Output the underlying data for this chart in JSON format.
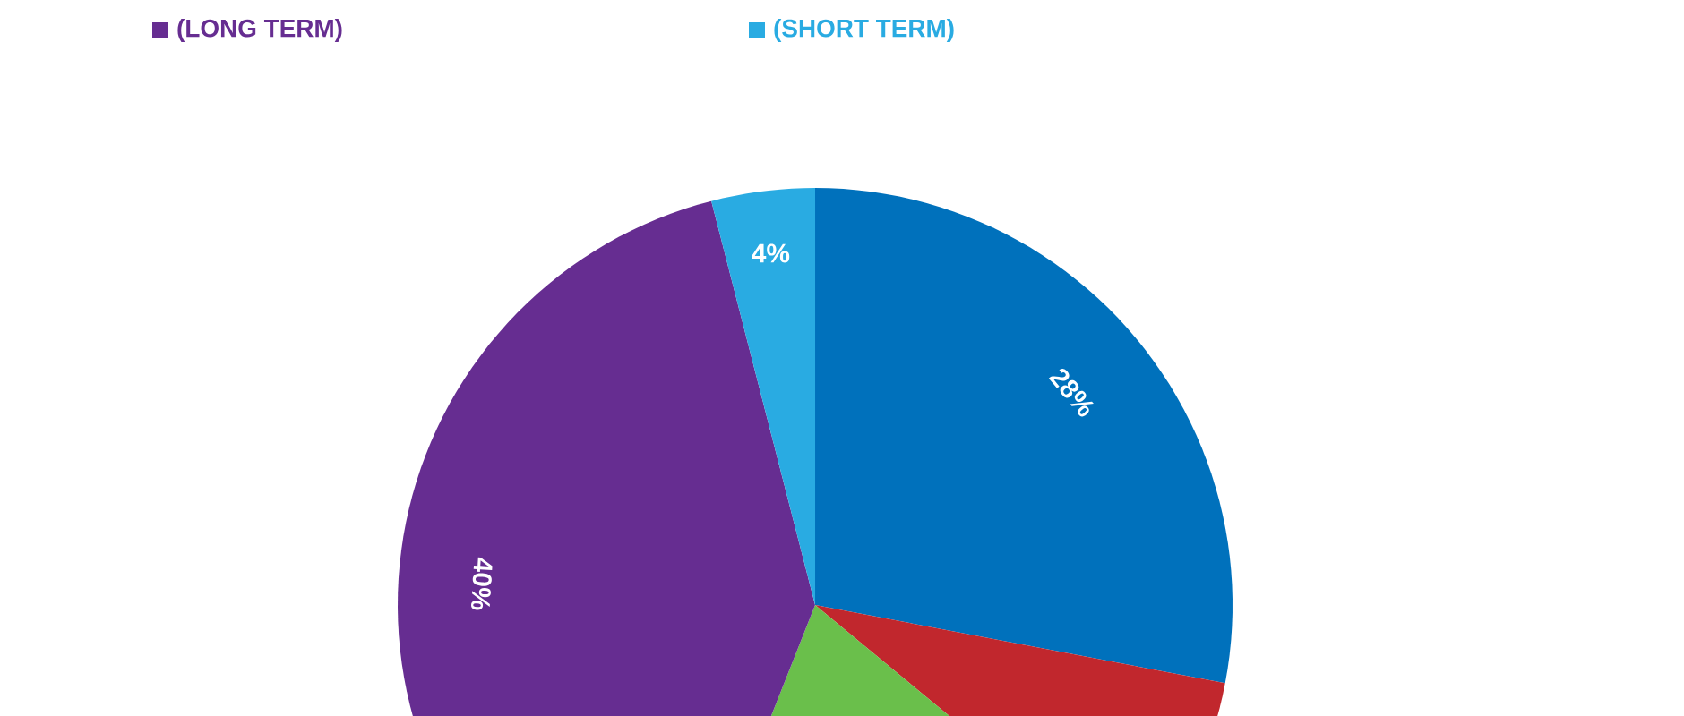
{
  "chart_data": {
    "type": "pie",
    "categories": [
      null,
      null,
      null,
      "(LONG TERM)",
      "(SHORT TERM)"
    ],
    "values": [
      28,
      8,
      20,
      40,
      4
    ],
    "colors": [
      "#0071bc",
      "#c1272d",
      "#6abf4b",
      "#662d91",
      "#29abe2"
    ],
    "value_labels": [
      "28%",
      null,
      null,
      "40%",
      "4%"
    ],
    "legend": "top"
  }
}
